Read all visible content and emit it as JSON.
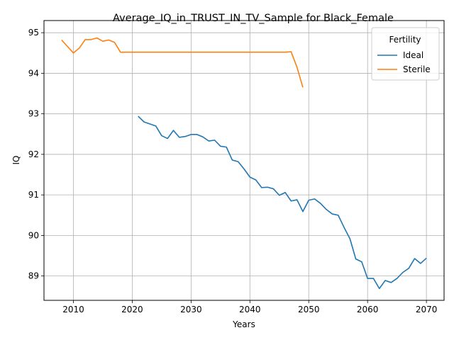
{
  "chart_data": {
    "type": "line",
    "title": "Average_IQ_in_TRUST_IN_TV_Sample for Black_Female",
    "xlabel": "Years",
    "ylabel": "IQ",
    "xlim": [
      2005,
      2073
    ],
    "ylim": [
      88.4,
      95.3
    ],
    "xticks": [
      2010,
      2020,
      2030,
      2040,
      2050,
      2060,
      2070
    ],
    "yticks": [
      89,
      90,
      91,
      92,
      93,
      94,
      95
    ],
    "grid": true,
    "legend": {
      "title": "Fertility",
      "position": "top-right"
    },
    "series": [
      {
        "name": "Ideal",
        "color": "#1f77b4",
        "x": [
          2021,
          2022,
          2023,
          2024,
          2025,
          2026,
          2027,
          2028,
          2029,
          2030,
          2031,
          2032,
          2033,
          2034,
          2035,
          2036,
          2037,
          2038,
          2039,
          2040,
          2041,
          2042,
          2043,
          2044,
          2045,
          2046,
          2047,
          2048,
          2049,
          2050,
          2051,
          2052,
          2053,
          2054,
          2055,
          2056,
          2057,
          2058,
          2059,
          2060,
          2061,
          2062,
          2063,
          2064,
          2065,
          2066,
          2067,
          2068,
          2069,
          2070
        ],
        "y": [
          92.94,
          92.8,
          92.75,
          92.7,
          92.46,
          92.39,
          92.59,
          92.42,
          92.44,
          92.49,
          92.49,
          92.43,
          92.33,
          92.35,
          92.2,
          92.18,
          91.86,
          91.82,
          91.64,
          91.44,
          91.37,
          91.18,
          91.19,
          91.15,
          90.99,
          91.06,
          90.85,
          90.88,
          90.59,
          90.87,
          90.9,
          90.79,
          90.64,
          90.53,
          90.5,
          90.2,
          89.92,
          89.42,
          89.35,
          88.94,
          88.94,
          88.69,
          88.89,
          88.84,
          88.94,
          89.09,
          89.19,
          89.43,
          89.31,
          89.44
        ]
      },
      {
        "name": "Sterile",
        "color": "#ff7f0e",
        "x": [
          2008,
          2009,
          2010,
          2011,
          2012,
          2013,
          2014,
          2015,
          2016,
          2017,
          2018,
          2019,
          2020,
          2021,
          2022,
          2023,
          2024,
          2025,
          2026,
          2027,
          2028,
          2029,
          2030,
          2031,
          2032,
          2033,
          2034,
          2035,
          2036,
          2037,
          2038,
          2039,
          2040,
          2041,
          2042,
          2043,
          2044,
          2045,
          2046,
          2047,
          2048,
          2049
        ],
        "y": [
          94.82,
          94.66,
          94.5,
          94.62,
          94.83,
          94.83,
          94.87,
          94.79,
          94.82,
          94.76,
          94.52,
          94.52,
          94.52,
          94.52,
          94.52,
          94.52,
          94.52,
          94.52,
          94.52,
          94.52,
          94.52,
          94.52,
          94.52,
          94.52,
          94.52,
          94.52,
          94.52,
          94.52,
          94.52,
          94.52,
          94.52,
          94.52,
          94.52,
          94.52,
          94.52,
          94.52,
          94.52,
          94.52,
          94.52,
          94.53,
          94.15,
          93.65
        ]
      }
    ]
  }
}
